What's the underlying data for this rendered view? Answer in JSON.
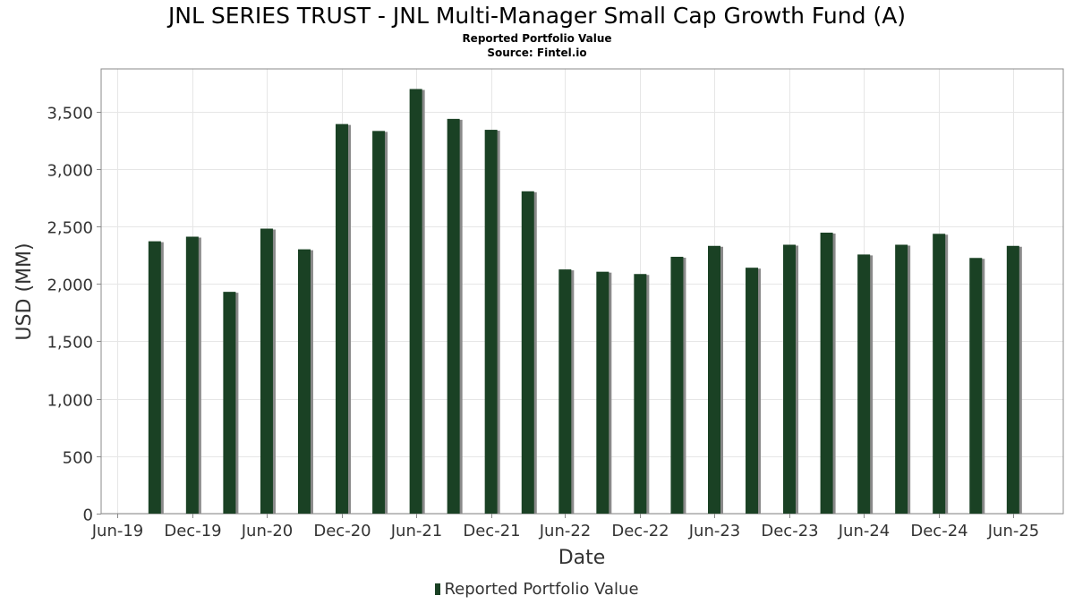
{
  "header": {
    "title": "JNL SERIES TRUST - JNL Multi-Manager Small Cap Growth Fund (A)",
    "subtitle": "Reported Portfolio Value",
    "source": "Source: Fintel.io"
  },
  "legend": {
    "label": "Reported Portfolio Value"
  },
  "colors": {
    "bar": "#1a4124",
    "bar_shadow": "#8a8a8a",
    "grid": "#e6e6e6",
    "axis": "#888888"
  },
  "chart_data": {
    "type": "bar",
    "xlabel": "Date",
    "ylabel": "USD (MM)",
    "ylim": [
      0,
      3870
    ],
    "yticks": [
      0,
      500,
      1000,
      1500,
      2000,
      2500,
      3000,
      3500
    ],
    "ytick_labels": [
      "0",
      "500",
      "1,000",
      "1,500",
      "2,000",
      "2,500",
      "3,000",
      "3,500"
    ],
    "xlim": [
      "2019-05-22",
      "2025-10-31"
    ],
    "xticks": [
      "2019-06-30",
      "2019-12-31",
      "2020-06-30",
      "2020-12-31",
      "2021-06-30",
      "2021-12-31",
      "2022-06-30",
      "2022-12-31",
      "2023-06-30",
      "2023-12-31",
      "2024-06-30",
      "2024-12-31",
      "2025-06-30"
    ],
    "xtick_labels": [
      "Jun-19",
      "Dec-19",
      "Jun-20",
      "Dec-20",
      "Jun-21",
      "Dec-21",
      "Jun-22",
      "Dec-22",
      "Jun-23",
      "Dec-23",
      "Jun-24",
      "Dec-24",
      "Jun-25"
    ],
    "grid": true,
    "legend_position": "bottom-center",
    "series": [
      {
        "name": "Reported Portfolio Value",
        "x": [
          "2019-09-30",
          "2019-12-31",
          "2020-03-31",
          "2020-06-30",
          "2020-09-30",
          "2020-12-31",
          "2021-03-31",
          "2021-06-30",
          "2021-09-30",
          "2021-12-31",
          "2022-03-31",
          "2022-06-30",
          "2022-09-30",
          "2022-12-31",
          "2023-03-31",
          "2023-06-30",
          "2023-09-30",
          "2023-12-31",
          "2024-03-31",
          "2024-06-30",
          "2024-09-30",
          "2024-12-31",
          "2025-03-31",
          "2025-06-30"
        ],
        "values": [
          2370,
          2410,
          1930,
          2480,
          2300,
          3390,
          3330,
          3695,
          3435,
          3340,
          2805,
          2125,
          2105,
          2085,
          2235,
          2330,
          2140,
          2340,
          2445,
          2255,
          2340,
          2435,
          2225,
          2330
        ]
      }
    ]
  }
}
